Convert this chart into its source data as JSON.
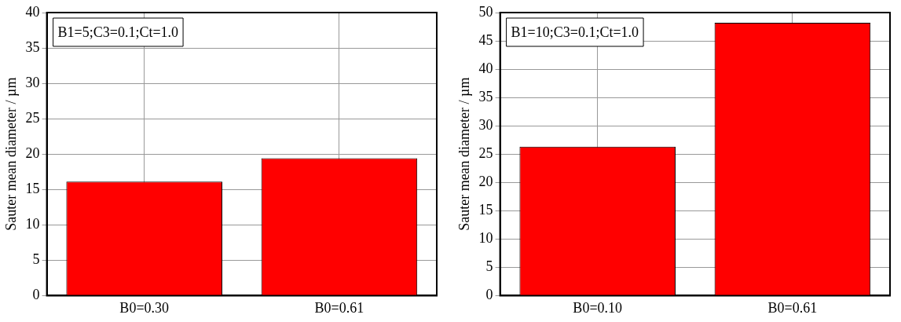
{
  "chart_data": [
    {
      "type": "bar",
      "categories": [
        "B0=0.30",
        "B0=0.61"
      ],
      "values": [
        16.1,
        19.4
      ],
      "color": "#ff0000",
      "ylabel": "Sauter mean diameter / µm",
      "ylim": [
        0,
        40
      ],
      "yticks": [
        0,
        5,
        10,
        15,
        20,
        25,
        30,
        35,
        40
      ],
      "grid": true,
      "annotations": [
        "B1=5;C3=0.1;Ct=1.0"
      ]
    },
    {
      "type": "bar",
      "categories": [
        "B0=0.10",
        "B0=0.61"
      ],
      "values": [
        26.3,
        48.2
      ],
      "color": "#ff0000",
      "ylabel": "Sauter mean diameter / µm",
      "ylim": [
        0,
        50
      ],
      "yticks": [
        0,
        5,
        10,
        15,
        20,
        25,
        30,
        35,
        40,
        45,
        50
      ],
      "grid": true,
      "annotations": [
        "B1=10;C3=0.1;Ct=1.0"
      ]
    }
  ]
}
